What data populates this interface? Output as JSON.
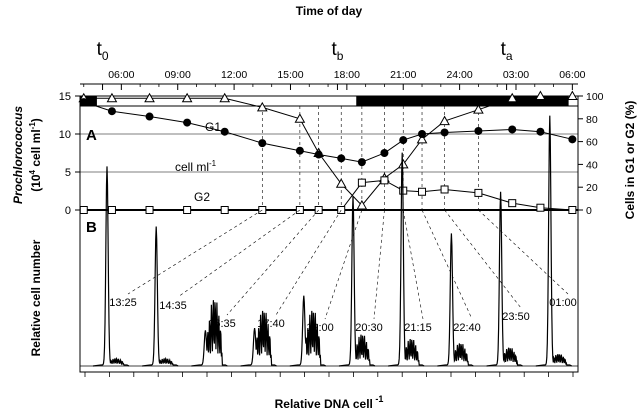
{
  "chart_data": {
    "type": "line",
    "top_axis_title": "Time of day",
    "top_ticks": [
      "06:00",
      "09:00",
      "12:00",
      "15:00",
      "18:00",
      "21:00",
      "24:00",
      "03:00",
      "06:00"
    ],
    "markers": [
      {
        "label": "t",
        "sub": "0",
        "time": 5.0
      },
      {
        "label": "t",
        "sub": "b",
        "time": 17.5
      },
      {
        "label": "t",
        "sub": "a",
        "time": 26.5
      }
    ],
    "night": {
      "start": 18.5,
      "end": 29.8
    },
    "dark_early": {
      "start": 4.0,
      "end": 4.7
    },
    "panel_a": {
      "label": "A",
      "left_axis": {
        "title_italic": "Prochlorococcus",
        "title_rest": "(10",
        "title_sup": "4",
        "title_tail": " cell ml",
        "title_sup2": "-1",
        "title_end": ")",
        "ylim": [
          0,
          15
        ],
        "ticks": [
          "0",
          "5",
          "10",
          "15"
        ]
      },
      "right_axis": {
        "title": "Cells in G1 or G2 (%)",
        "ylim": [
          0,
          100
        ],
        "ticks": [
          "0",
          "20",
          "40",
          "60",
          "80",
          "100"
        ]
      },
      "series": [
        {
          "name": "G1",
          "marker": "triangle",
          "axis": "right",
          "x": [
            4.0,
            5.5,
            7.5,
            9.5,
            11.5,
            13.5,
            15.5,
            16.5,
            17.7,
            18.8,
            20.0,
            21.0,
            22.0,
            23.2,
            25.0,
            26.8,
            28.3,
            30.0
          ],
          "y": [
            98,
            98,
            98,
            98,
            98,
            90,
            80,
            50,
            23,
            4,
            28,
            40,
            62,
            78,
            88,
            98,
            100,
            100
          ]
        },
        {
          "name": "cell ml",
          "name_sup": "-1",
          "marker": "circle",
          "axis": "left",
          "x": [
            4.0,
            5.5,
            7.5,
            9.5,
            11.5,
            13.5,
            15.5,
            16.5,
            17.7,
            18.8,
            20.0,
            21.0,
            22.0,
            23.2,
            25.0,
            26.8,
            28.3,
            30.0
          ],
          "y": [
            14.2,
            13.0,
            12.3,
            11.5,
            10.3,
            8.8,
            7.8,
            7.3,
            6.8,
            6.3,
            7.5,
            9.2,
            10.0,
            10.2,
            10.4,
            10.6,
            10.3,
            9.3
          ]
        },
        {
          "name": "G2",
          "marker": "square",
          "axis": "right",
          "x": [
            4.0,
            5.5,
            7.5,
            9.5,
            11.5,
            13.5,
            15.5,
            16.5,
            17.7,
            18.8,
            20.0,
            21.0,
            22.0,
            23.2,
            25.0,
            26.8,
            28.3,
            30.0
          ],
          "y": [
            0,
            0,
            0,
            0,
            0,
            0,
            0,
            0,
            0,
            24,
            26,
            17,
            16,
            18,
            15,
            6,
            2,
            0
          ]
        }
      ]
    },
    "panel_b": {
      "label": "B",
      "ylabel": "Relative cell number",
      "xlabel": "Relative DNA cell",
      "xlabel_sup": "-1",
      "histograms": [
        {
          "label": "13:25",
          "time": 13.42,
          "height": 0.86,
          "g2": 0.0
        },
        {
          "label": "14:35",
          "time": 14.58,
          "height": 0.6,
          "g2": 0.0
        },
        {
          "label": "16:35",
          "time": 16.58,
          "height": 0.15,
          "g2": 0.3
        },
        {
          "label": "17:40",
          "time": 17.67,
          "height": 0.16,
          "g2": 0.25
        },
        {
          "label": "19:00",
          "time": 19.0,
          "height": 0.3,
          "g2": 0.25
        },
        {
          "label": "20:30",
          "time": 20.5,
          "height": 0.73,
          "g2": 0.14
        },
        {
          "label": "21:15",
          "time": 21.25,
          "height": 0.92,
          "g2": 0.12
        },
        {
          "label": "22:40",
          "time": 22.67,
          "height": 0.57,
          "g2": 0.1
        },
        {
          "label": "23:50",
          "time": 23.83,
          "height": 0.75,
          "g2": 0.08
        },
        {
          "label": "01:00",
          "time": 25.0,
          "height": 1.08,
          "g2": 0.05
        }
      ]
    }
  }
}
